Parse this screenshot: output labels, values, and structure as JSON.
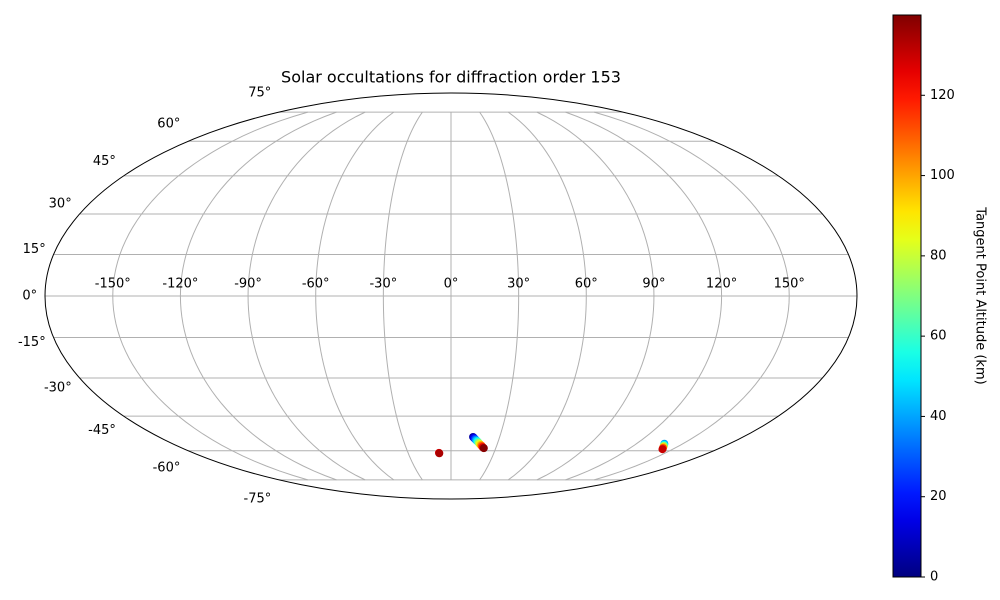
{
  "chart_data": {
    "type": "scatter",
    "projection": "mollweide",
    "title": "Solar occultations for diffraction order 153",
    "colorbar_label": "Tangent Point Altitude (km)",
    "colormap": "jet",
    "grid": true,
    "x": [
      -8.4,
      -8.2,
      13.6,
      14.2,
      14.9,
      15.5,
      16.1,
      16.8,
      17.4,
      18.0,
      18.6,
      19.3,
      19.9,
      20.5,
      21.2,
      22.0,
      138,
      139,
      140,
      141,
      142,
      143
    ],
    "y": [
      -61.0,
      -61.2,
      -53.8,
      -54.2,
      -54.6,
      -55.0,
      -55.4,
      -55.7,
      -56.1,
      -56.5,
      -56.9,
      -57.3,
      -57.6,
      -58.0,
      -58.4,
      -58.8,
      -56.8,
      -57.3,
      -57.8,
      -58.3,
      -58.8,
      -59.3
    ],
    "values": [
      125,
      134,
      5,
      14,
      24,
      34,
      44,
      54,
      64,
      74,
      84,
      94,
      104,
      114,
      126,
      139,
      40,
      55,
      75,
      95,
      115,
      130
    ],
    "clim": [
      0,
      140
    ],
    "cticks": [
      0,
      20,
      40,
      60,
      80,
      100,
      120
    ],
    "xticks": [
      {
        "value": -150,
        "label": "-150°"
      },
      {
        "value": -120,
        "label": "-120°"
      },
      {
        "value": -90,
        "label": "-90°"
      },
      {
        "value": -60,
        "label": "-60°"
      },
      {
        "value": -30,
        "label": "-30°"
      },
      {
        "value": 0,
        "label": "0°"
      },
      {
        "value": 30,
        "label": "30°"
      },
      {
        "value": 60,
        "label": "60°"
      },
      {
        "value": 90,
        "label": "90°"
      },
      {
        "value": 120,
        "label": "120°"
      },
      {
        "value": 150,
        "label": "150°"
      }
    ],
    "yticks": [
      {
        "value": -75,
        "label": "-75°"
      },
      {
        "value": -60,
        "label": "-60°"
      },
      {
        "value": -45,
        "label": "-45°"
      },
      {
        "value": -30,
        "label": "-30°"
      },
      {
        "value": -15,
        "label": "-15°"
      },
      {
        "value": 0,
        "label": "0°"
      },
      {
        "value": 15,
        "label": "15°"
      },
      {
        "value": 30,
        "label": "30°"
      },
      {
        "value": 45,
        "label": "45°"
      },
      {
        "value": 60,
        "label": "60°"
      },
      {
        "value": 75,
        "label": "75°"
      }
    ]
  }
}
